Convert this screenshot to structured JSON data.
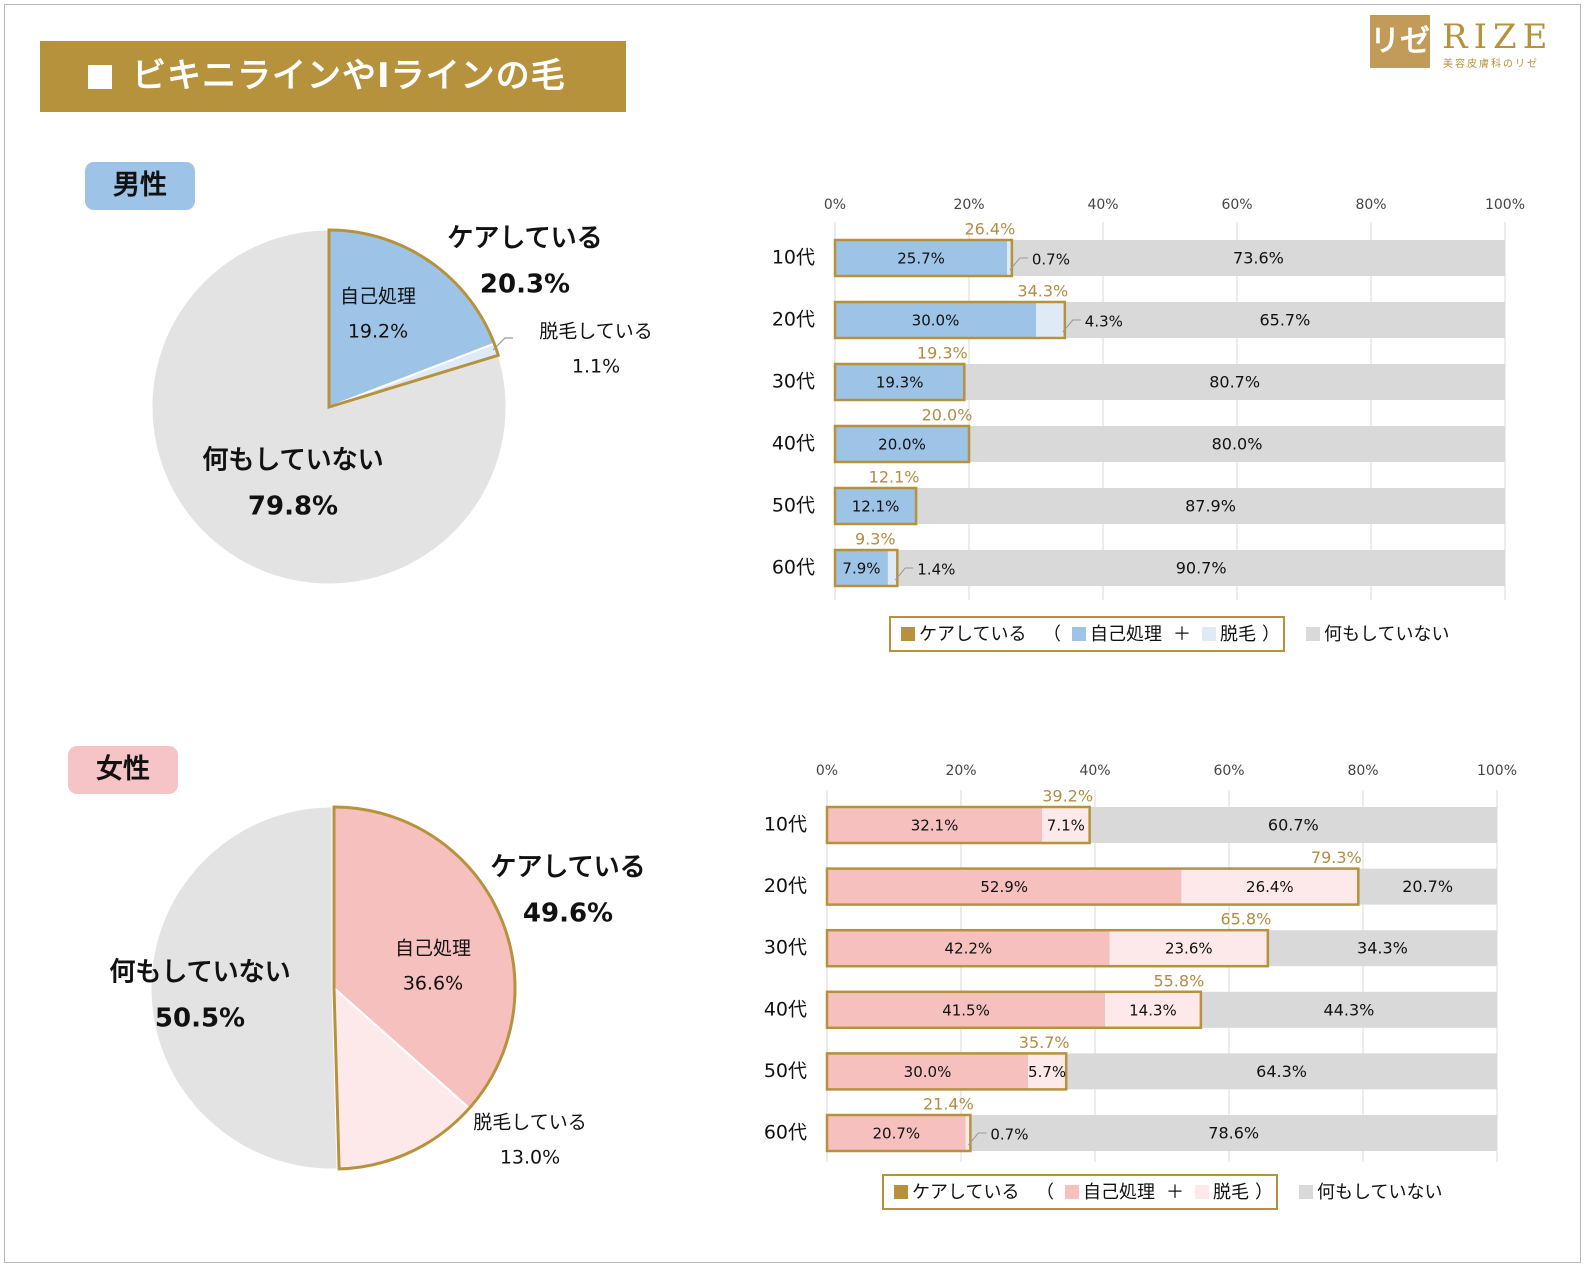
{
  "page": {
    "title": "ビキニラインやIラインの毛",
    "logo_mark": "リゼ",
    "logo_text": "RIZE",
    "logo_sub": "美容皮膚科のリゼ"
  },
  "colors": {
    "gold": "#b7923d",
    "gold_text": "#b08d45",
    "male_main": "#9dc3e6",
    "male_light": "#deebf7",
    "female_main": "#f6c0bf",
    "female_light": "#fde9ea",
    "none_bar": "#d9d9d9",
    "none_pie": "#e3e3e3"
  },
  "legend": {
    "care": "ケアしている",
    "open": "（",
    "self": "自己処理",
    "plus": "＋",
    "removal": "脱毛",
    "close": "）",
    "none": "何もしていない"
  },
  "chart_data": [
    {
      "id": "male-pie",
      "type": "pie",
      "panel_label": "男性",
      "slices": [
        {
          "name": "自己処理",
          "value": 19.2,
          "label": "19.2%"
        },
        {
          "name": "脱毛している",
          "value": 1.1,
          "label": "1.1%"
        },
        {
          "name": "何もしていない",
          "value": 79.8,
          "label": "79.8%"
        }
      ],
      "care_group": {
        "name": "ケアしている",
        "value": 20.3,
        "label": "20.3%"
      }
    },
    {
      "id": "male-bar",
      "type": "bar",
      "orientation": "horizontal",
      "stacked": true,
      "categories": [
        "10代",
        "20代",
        "30代",
        "40代",
        "50代",
        "60代"
      ],
      "series": [
        {
          "name": "自己処理",
          "values": [
            25.7,
            30.0,
            19.3,
            20.0,
            12.1,
            7.9
          ],
          "labels": [
            "25.7%",
            "30.0%",
            "19.3%",
            "20.0%",
            "12.1%",
            "7.9%"
          ]
        },
        {
          "name": "脱毛",
          "values": [
            0.7,
            4.3,
            0,
            0,
            0,
            1.4
          ],
          "labels": [
            "0.7%",
            "4.3%",
            "",
            "",
            "",
            "1.4%"
          ]
        },
        {
          "name": "何もしていない",
          "values": [
            73.6,
            65.7,
            80.7,
            80.0,
            87.9,
            90.7
          ],
          "labels": [
            "73.6%",
            "65.7%",
            "80.7%",
            "80.0%",
            "87.9%",
            "90.7%"
          ]
        }
      ],
      "care_totals": {
        "values": [
          26.4,
          34.3,
          19.3,
          20.0,
          12.1,
          9.3
        ],
        "labels": [
          "26.4%",
          "34.3%",
          "19.3%",
          "20.0%",
          "12.1%",
          "9.3%"
        ]
      },
      "xlim": [
        0,
        100
      ],
      "xticks": [
        "0%",
        "20%",
        "40%",
        "60%",
        "80%",
        "100%"
      ],
      "legend_position": "bottom"
    },
    {
      "id": "female-pie",
      "type": "pie",
      "panel_label": "女性",
      "slices": [
        {
          "name": "自己処理",
          "value": 36.6,
          "label": "36.6%"
        },
        {
          "name": "脱毛している",
          "value": 13.0,
          "label": "13.0%"
        },
        {
          "name": "何もしていない",
          "value": 50.5,
          "label": "50.5%"
        }
      ],
      "care_group": {
        "name": "ケアしている",
        "value": 49.6,
        "label": "49.6%"
      }
    },
    {
      "id": "female-bar",
      "type": "bar",
      "orientation": "horizontal",
      "stacked": true,
      "categories": [
        "10代",
        "20代",
        "30代",
        "40代",
        "50代",
        "60代"
      ],
      "series": [
        {
          "name": "自己処理",
          "values": [
            32.1,
            52.9,
            42.2,
            41.5,
            30.0,
            20.7
          ],
          "labels": [
            "32.1%",
            "52.9%",
            "42.2%",
            "41.5%",
            "30.0%",
            "20.7%"
          ]
        },
        {
          "name": "脱毛",
          "values": [
            7.1,
            26.4,
            23.6,
            14.3,
            5.7,
            0.7
          ],
          "labels": [
            "7.1%",
            "26.4%",
            "23.6%",
            "14.3%",
            "5.7%",
            "0.7%"
          ]
        },
        {
          "name": "何もしていない",
          "values": [
            60.7,
            20.7,
            34.3,
            44.3,
            64.3,
            78.6
          ],
          "labels": [
            "60.7%",
            "20.7%",
            "34.3%",
            "44.3%",
            "64.3%",
            "78.6%"
          ]
        }
      ],
      "care_totals": {
        "values": [
          39.2,
          79.3,
          65.8,
          55.8,
          35.7,
          21.4
        ],
        "labels": [
          "39.2%",
          "79.3%",
          "65.8%",
          "55.8%",
          "35.7%",
          "21.4%"
        ]
      },
      "xlim": [
        0,
        100
      ],
      "xticks": [
        "0%",
        "20%",
        "40%",
        "60%",
        "80%",
        "100%"
      ],
      "legend_position": "bottom"
    }
  ]
}
